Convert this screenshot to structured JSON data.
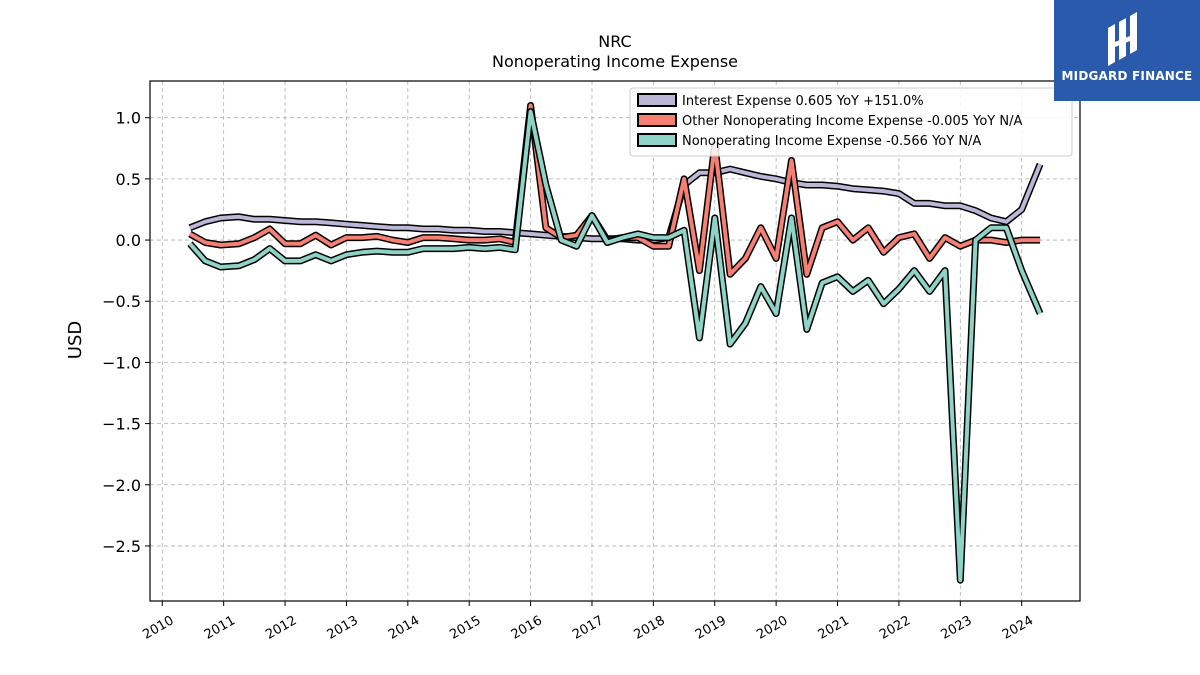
{
  "chart_data": {
    "type": "line",
    "title": "NRC",
    "subtitle": "Nonoperating Income Expense",
    "ylabel": "USD",
    "xlabel": "",
    "xlim": [
      2009.8,
      2024.95
    ],
    "ylim": [
      -2.95,
      1.3
    ],
    "yticks": [
      1.0,
      0.5,
      0.0,
      -0.5,
      -1.0,
      -1.5,
      -2.0,
      -2.5
    ],
    "ytick_labels": [
      "1.0",
      "0.5",
      "0.0",
      "−0.5",
      "−1.0",
      "−1.5",
      "−2.0",
      "−2.5"
    ],
    "xticks": [
      2010,
      2011,
      2012,
      2013,
      2014,
      2015,
      2016,
      2017,
      2018,
      2019,
      2020,
      2021,
      2022,
      2023,
      2024
    ],
    "xtick_labels": [
      "2010",
      "2011",
      "2012",
      "2013",
      "2014",
      "2015",
      "2016",
      "2017",
      "2018",
      "2019",
      "2020",
      "2021",
      "2022",
      "2023",
      "2024"
    ],
    "grid": true,
    "legend_position": "top-right",
    "series": [
      {
        "name": "Interest Expense  0.605 YoY +151.0%",
        "color": "#bcb7d7",
        "points": [
          [
            2010.45,
            0.1
          ],
          [
            2010.7,
            0.15
          ],
          [
            2010.95,
            0.18
          ],
          [
            2011.25,
            0.19
          ],
          [
            2011.5,
            0.17
          ],
          [
            2011.75,
            0.17
          ],
          [
            2012.0,
            0.16
          ],
          [
            2012.25,
            0.15
          ],
          [
            2012.5,
            0.15
          ],
          [
            2012.75,
            0.14
          ],
          [
            2013.0,
            0.13
          ],
          [
            2013.25,
            0.12
          ],
          [
            2013.5,
            0.11
          ],
          [
            2013.75,
            0.1
          ],
          [
            2014.0,
            0.1
          ],
          [
            2014.25,
            0.09
          ],
          [
            2014.5,
            0.09
          ],
          [
            2014.75,
            0.08
          ],
          [
            2015.0,
            0.08
          ],
          [
            2015.25,
            0.07
          ],
          [
            2015.5,
            0.07
          ],
          [
            2015.75,
            0.06
          ],
          [
            2016.0,
            0.05
          ],
          [
            2016.25,
            0.04
          ],
          [
            2016.5,
            0.03
          ],
          [
            2016.75,
            0.02
          ],
          [
            2017.0,
            0.01
          ],
          [
            2017.25,
            0.01
          ],
          [
            2017.5,
            0.01
          ],
          [
            2017.75,
            0.0
          ],
          [
            2018.0,
            0.0
          ],
          [
            2018.25,
            0.02
          ],
          [
            2018.5,
            0.45
          ],
          [
            2018.75,
            0.55
          ],
          [
            2019.0,
            0.55
          ],
          [
            2019.25,
            0.58
          ],
          [
            2019.5,
            0.55
          ],
          [
            2019.75,
            0.52
          ],
          [
            2020.0,
            0.5
          ],
          [
            2020.25,
            0.47
          ],
          [
            2020.5,
            0.45
          ],
          [
            2020.75,
            0.45
          ],
          [
            2021.0,
            0.44
          ],
          [
            2021.25,
            0.42
          ],
          [
            2021.5,
            0.41
          ],
          [
            2021.75,
            0.4
          ],
          [
            2022.0,
            0.38
          ],
          [
            2022.25,
            0.3
          ],
          [
            2022.5,
            0.3
          ],
          [
            2022.75,
            0.28
          ],
          [
            2023.0,
            0.28
          ],
          [
            2023.25,
            0.24
          ],
          [
            2023.5,
            0.18
          ],
          [
            2023.75,
            0.15
          ],
          [
            2024.0,
            0.25
          ],
          [
            2024.3,
            0.62
          ]
        ]
      },
      {
        "name": "Other Nonoperating Income Expense  -0.005 YoY N/A",
        "color": "#f47f72",
        "points": [
          [
            2010.45,
            0.05
          ],
          [
            2010.7,
            -0.02
          ],
          [
            2010.95,
            -0.04
          ],
          [
            2011.25,
            -0.03
          ],
          [
            2011.5,
            0.02
          ],
          [
            2011.75,
            0.09
          ],
          [
            2012.0,
            -0.03
          ],
          [
            2012.25,
            -0.03
          ],
          [
            2012.5,
            0.04
          ],
          [
            2012.75,
            -0.04
          ],
          [
            2013.0,
            0.02
          ],
          [
            2013.25,
            0.02
          ],
          [
            2013.5,
            0.03
          ],
          [
            2013.75,
            0.0
          ],
          [
            2014.0,
            -0.02
          ],
          [
            2014.25,
            0.02
          ],
          [
            2014.5,
            0.02
          ],
          [
            2014.75,
            0.01
          ],
          [
            2015.0,
            0.0
          ],
          [
            2015.25,
            0.0
          ],
          [
            2015.5,
            0.01
          ],
          [
            2015.75,
            -0.02
          ],
          [
            2016.0,
            1.1
          ],
          [
            2016.25,
            0.1
          ],
          [
            2016.5,
            0.02
          ],
          [
            2016.75,
            0.04
          ],
          [
            2017.0,
            0.2
          ],
          [
            2017.25,
            0.0
          ],
          [
            2017.5,
            0.02
          ],
          [
            2017.75,
            0.02
          ],
          [
            2018.0,
            -0.05
          ],
          [
            2018.25,
            -0.05
          ],
          [
            2018.5,
            0.5
          ],
          [
            2018.75,
            -0.25
          ],
          [
            2019.0,
            0.78
          ],
          [
            2019.25,
            -0.28
          ],
          [
            2019.5,
            -0.15
          ],
          [
            2019.75,
            0.1
          ],
          [
            2020.0,
            -0.15
          ],
          [
            2020.25,
            0.65
          ],
          [
            2020.5,
            -0.28
          ],
          [
            2020.75,
            0.1
          ],
          [
            2021.0,
            0.15
          ],
          [
            2021.25,
            0.0
          ],
          [
            2021.5,
            0.1
          ],
          [
            2021.75,
            -0.1
          ],
          [
            2022.0,
            0.02
          ],
          [
            2022.25,
            0.05
          ],
          [
            2022.5,
            -0.15
          ],
          [
            2022.75,
            0.02
          ],
          [
            2023.0,
            -0.05
          ],
          [
            2023.25,
            0.0
          ],
          [
            2023.5,
            0.0
          ],
          [
            2023.75,
            -0.02
          ],
          [
            2024.0,
            0.0
          ],
          [
            2024.3,
            0.0
          ]
        ]
      },
      {
        "name": "Nonoperating Income Expense  -0.566 YoY N/A",
        "color": "#8dd3c6",
        "points": [
          [
            2010.45,
            -0.03
          ],
          [
            2010.7,
            -0.17
          ],
          [
            2010.95,
            -0.22
          ],
          [
            2011.25,
            -0.21
          ],
          [
            2011.5,
            -0.16
          ],
          [
            2011.75,
            -0.07
          ],
          [
            2012.0,
            -0.17
          ],
          [
            2012.25,
            -0.17
          ],
          [
            2012.5,
            -0.12
          ],
          [
            2012.75,
            -0.17
          ],
          [
            2013.0,
            -0.12
          ],
          [
            2013.25,
            -0.1
          ],
          [
            2013.5,
            -0.09
          ],
          [
            2013.75,
            -0.1
          ],
          [
            2014.0,
            -0.1
          ],
          [
            2014.25,
            -0.07
          ],
          [
            2014.5,
            -0.07
          ],
          [
            2014.75,
            -0.07
          ],
          [
            2015.0,
            -0.06
          ],
          [
            2015.25,
            -0.07
          ],
          [
            2015.5,
            -0.06
          ],
          [
            2015.75,
            -0.08
          ],
          [
            2016.0,
            1.05
          ],
          [
            2016.25,
            0.45
          ],
          [
            2016.5,
            0.0
          ],
          [
            2016.75,
            -0.05
          ],
          [
            2017.0,
            0.2
          ],
          [
            2017.25,
            -0.02
          ],
          [
            2017.5,
            0.02
          ],
          [
            2017.75,
            0.05
          ],
          [
            2018.0,
            0.02
          ],
          [
            2018.25,
            0.02
          ],
          [
            2018.5,
            0.08
          ],
          [
            2018.75,
            -0.8
          ],
          [
            2019.0,
            0.18
          ],
          [
            2019.25,
            -0.85
          ],
          [
            2019.5,
            -0.68
          ],
          [
            2019.75,
            -0.38
          ],
          [
            2020.0,
            -0.6
          ],
          [
            2020.25,
            0.18
          ],
          [
            2020.5,
            -0.73
          ],
          [
            2020.75,
            -0.35
          ],
          [
            2021.0,
            -0.3
          ],
          [
            2021.25,
            -0.42
          ],
          [
            2021.5,
            -0.33
          ],
          [
            2021.75,
            -0.52
          ],
          [
            2022.0,
            -0.4
          ],
          [
            2022.25,
            -0.25
          ],
          [
            2022.5,
            -0.42
          ],
          [
            2022.75,
            -0.25
          ],
          [
            2023.0,
            -2.78
          ],
          [
            2023.25,
            0.0
          ],
          [
            2023.5,
            0.1
          ],
          [
            2023.75,
            0.1
          ],
          [
            2024.0,
            -0.25
          ],
          [
            2024.3,
            -0.6
          ]
        ]
      }
    ]
  },
  "logo": {
    "brand_text": "MIDGARD FINANCE",
    "background": "#2a5aab",
    "icon": "midgard-logo-icon"
  }
}
